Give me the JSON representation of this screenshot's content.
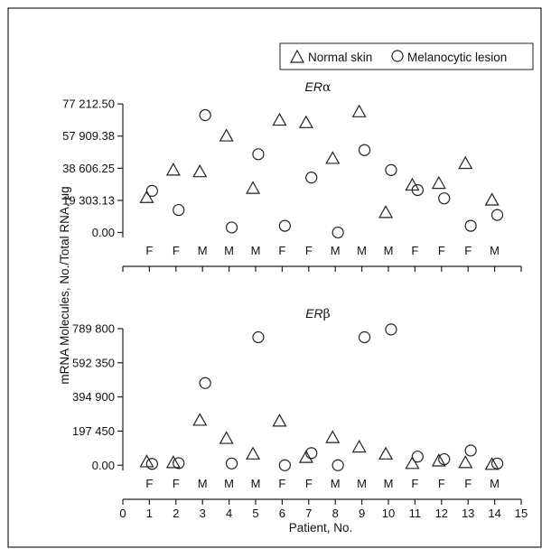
{
  "legend": {
    "entries": [
      {
        "symbol": "triangle",
        "label": "Normal skin"
      },
      {
        "symbol": "circle",
        "label": "Melanocytic lesion"
      }
    ]
  },
  "shared": {
    "ylabel": "mRNA Molecules, No./Total RNA, μg",
    "xlabel": "Patient, No.",
    "sex": [
      "F",
      "F",
      "M",
      "M",
      "M",
      "F",
      "F",
      "M",
      "M",
      "M",
      "F",
      "F",
      "F",
      "M"
    ]
  },
  "chart_data": [
    {
      "type": "scatter",
      "title": "ERα",
      "title_main": "ER",
      "title_greek": "α",
      "ylim": [
        -3000,
        80000
      ],
      "yticks": [
        0,
        19303.13,
        38606.25,
        57909.38,
        77212.5
      ],
      "ytick_labels": [
        "0.00",
        "19 303.13",
        "38 606.25",
        "57 909.38",
        "77 212.50"
      ],
      "xlim": [
        0,
        15
      ],
      "series": [
        {
          "name": "Normal skin",
          "marker": "triangle",
          "x": [
            0.9,
            1.9,
            2.9,
            3.9,
            4.9,
            5.9,
            6.9,
            7.9,
            8.9,
            9.9,
            10.9,
            11.9,
            12.9,
            13.9
          ],
          "y": [
            21000,
            37500,
            36500,
            58000,
            26500,
            67500,
            66000,
            44500,
            72500,
            12000,
            28500,
            29500,
            41500,
            19500
          ]
        },
        {
          "name": "Melanocytic lesion",
          "marker": "circle",
          "x": [
            1.1,
            2.1,
            3.1,
            4.1,
            5.1,
            6.1,
            7.1,
            8.1,
            9.1,
            10.1,
            11.1,
            12.1,
            13.1,
            14.1
          ],
          "y": [
            25000,
            13500,
            70500,
            3000,
            47000,
            4000,
            33000,
            0,
            49500,
            37500,
            25500,
            20500,
            4000,
            10500
          ]
        }
      ]
    },
    {
      "type": "scatter",
      "title": "ERβ",
      "title_main": "ER",
      "title_greek": "β",
      "ylim": [
        -30000,
        800000
      ],
      "yticks": [
        0,
        197450,
        394900,
        592350,
        789800
      ],
      "ytick_labels": [
        "0.00",
        "197 450",
        "394 900",
        "592 350",
        "789 800"
      ],
      "xlim": [
        0,
        15
      ],
      "xticks": [
        0,
        1,
        2,
        3,
        4,
        5,
        6,
        7,
        8,
        9,
        10,
        11,
        12,
        13,
        14,
        15
      ],
      "xtick_labels": [
        "0",
        "1",
        "2",
        "3",
        "4",
        "5",
        "6",
        "7",
        "8",
        "9",
        "10",
        "11",
        "12",
        "13",
        "14",
        "15"
      ],
      "series": [
        {
          "name": "Normal skin",
          "marker": "triangle",
          "x": [
            0.9,
            1.9,
            2.9,
            3.9,
            4.9,
            5.9,
            6.9,
            7.9,
            8.9,
            9.9,
            10.9,
            11.9,
            12.9,
            13.9
          ],
          "y": [
            20000,
            15000,
            260000,
            155000,
            65000,
            255000,
            45000,
            160000,
            105000,
            65000,
            10000,
            25000,
            15000,
            5000
          ]
        },
        {
          "name": "Melanocytic lesion",
          "marker": "circle",
          "x": [
            1.1,
            2.1,
            3.1,
            4.1,
            5.1,
            6.1,
            7.1,
            8.1,
            9.1,
            10.1,
            11.1,
            12.1,
            13.1,
            14.1
          ],
          "y": [
            8000,
            12000,
            475000,
            10000,
            740000,
            0,
            70000,
            0,
            740000,
            785000,
            50000,
            35000,
            85000,
            10000
          ]
        }
      ]
    }
  ]
}
